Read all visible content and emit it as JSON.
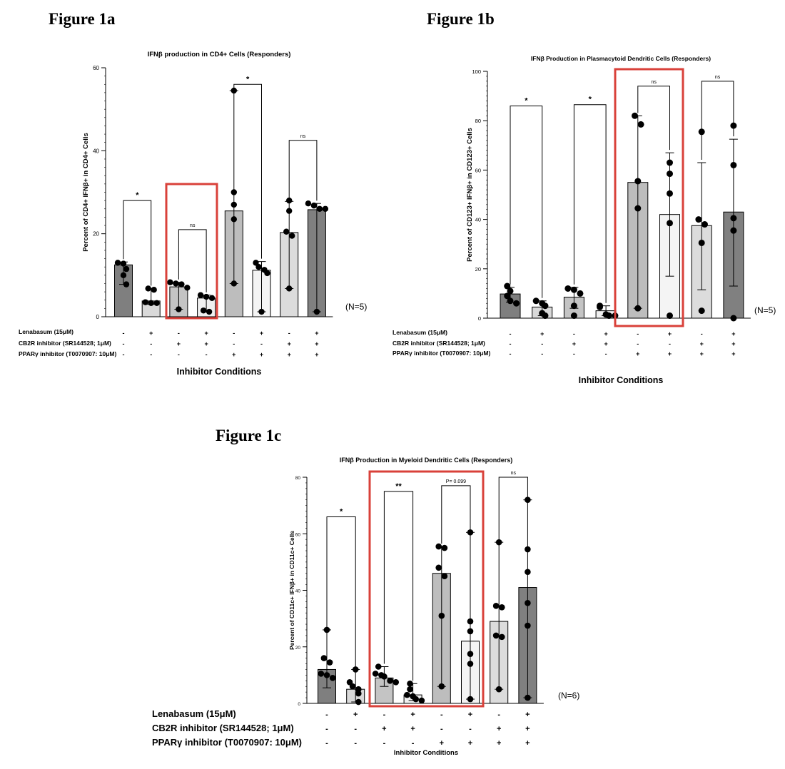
{
  "figures": [
    {
      "title": "Figure 1a"
    },
    {
      "title": "Figure 1b"
    },
    {
      "title": "Figure 1c"
    }
  ],
  "condition_rows": [
    {
      "label": "Lenabasum (15μM)",
      "signs": [
        "-",
        "+",
        "-",
        "+",
        "-",
        "+",
        "-",
        "+"
      ]
    },
    {
      "label": "CB2R inhibitor (SR144528; 1μM)",
      "signs": [
        "-",
        "-",
        "+",
        "+",
        "-",
        "-",
        "+",
        "+"
      ]
    },
    {
      "label": "PPARγ inhibitor (T0070907: 10μM)",
      "signs": [
        "-",
        "-",
        "-",
        "-",
        "+",
        "+",
        "+",
        "+"
      ]
    }
  ],
  "colors": {
    "bars": [
      "#7f7f7f",
      "#d9d9d9",
      "#c4c4c4",
      "#f0f0f0",
      "#bdbdbd",
      "#f4f4f4",
      "#dcdcdc",
      "#808080"
    ],
    "highlight": "#d9413a"
  },
  "chart_data": [
    {
      "type": "bar",
      "title": "IFNβ production in CD4+ Cells (Responders)",
      "ylabel": "Percent of CD4+ IFNβ+ in CD4+ Cells",
      "xlabel": "Inhibitor Conditions",
      "ylim": [
        0,
        60
      ],
      "yticks": [
        0,
        20,
        40,
        60
      ],
      "n_label": "(N=5)",
      "categories": [
        "1",
        "2",
        "3",
        "4",
        "5",
        "6",
        "7",
        "8"
      ],
      "values": [
        12.5,
        3.8,
        7.2,
        4.5,
        25.5,
        11.2,
        20.3,
        25.8
      ],
      "error_lo": [
        7.8,
        3.0,
        1.8,
        1.2,
        8.0,
        1.2,
        6.8,
        1.2
      ],
      "error_hi": [
        13.2,
        6.8,
        8.3,
        5.2,
        54.5,
        13.3,
        27.8,
        27.3
      ],
      "points": [
        [
          13.0,
          12.8,
          11.5,
          10.0,
          7.8
        ],
        [
          6.8,
          6.5,
          3.5,
          3.3,
          3.3
        ],
        [
          8.3,
          8.0,
          7.8,
          7.0,
          1.8
        ],
        [
          5.2,
          4.8,
          4.5,
          1.5,
          1.2
        ],
        [
          54.5,
          30.0,
          27.0,
          23.5,
          8.0
        ],
        [
          13.0,
          12.0,
          11.3,
          10.5,
          1.2
        ],
        [
          28.0,
          25.5,
          20.5,
          19.5,
          6.8
        ],
        [
          27.3,
          26.8,
          26.0,
          26.0,
          1.2
        ]
      ],
      "comparisons": [
        {
          "pair": [
            0,
            1
          ],
          "label": "*",
          "y": 28
        },
        {
          "pair": [
            2,
            3
          ],
          "label": "ns",
          "y": 21
        },
        {
          "pair": [
            4,
            5
          ],
          "label": "*",
          "y": 56
        },
        {
          "pair": [
            6,
            7
          ],
          "label": "ns",
          "y": 42.5
        }
      ],
      "highlight": [
        2,
        3
      ]
    },
    {
      "type": "bar",
      "title": "IFNβ Production in Plasmacytoid Dendritic Cells (Responders)",
      "ylabel": "Percent of CD123+ IFNβ+ in CD123+ Cells",
      "xlabel": "Inhibitor Conditions",
      "ylim": [
        0,
        100
      ],
      "yticks": [
        0,
        20,
        40,
        60,
        80,
        100
      ],
      "n_label": "(N=5)",
      "categories": [
        "1",
        "2",
        "3",
        "4",
        "5",
        "6",
        "7",
        "8"
      ],
      "values": [
        9.8,
        4.5,
        8.5,
        3.0,
        55.0,
        42.0,
        37.5,
        43.0
      ],
      "error_lo": [
        6.5,
        1.0,
        4.0,
        1.0,
        4.0,
        17.0,
        11.5,
        13.0
      ],
      "error_hi": [
        12.5,
        7.0,
        12.5,
        5.0,
        82.0,
        67.0,
        63.0,
        72.5
      ],
      "points": [
        [
          13.0,
          11.0,
          9.0,
          7.0,
          6.0
        ],
        [
          7.0,
          6.0,
          5.0,
          2.0,
          1.0
        ],
        [
          12.0,
          11.5,
          10.0,
          5.0,
          1.0
        ],
        [
          5.0,
          4.5,
          1.5,
          1.0,
          1.0
        ],
        [
          82.0,
          78.5,
          55.5,
          44.5,
          4.0
        ],
        [
          63.0,
          58.5,
          50.5,
          38.5,
          1.0
        ],
        [
          75.5,
          40.0,
          38.0,
          30.5,
          3.0
        ],
        [
          78.0,
          62.0,
          40.5,
          35.5,
          0.0
        ]
      ],
      "comparisons": [
        {
          "pair": [
            0,
            1
          ],
          "label": "*",
          "y": 86
        },
        {
          "pair": [
            2,
            3
          ],
          "label": "*",
          "y": 86.5
        },
        {
          "pair": [
            4,
            5
          ],
          "label": "ns",
          "y": 94
        },
        {
          "pair": [
            6,
            7
          ],
          "label": "ns",
          "y": 96
        }
      ],
      "highlight": [
        4,
        5
      ]
    },
    {
      "type": "bar",
      "title": "IFNβ Production in Myeloid Dendritic Cells (Responders)",
      "ylabel": "Percent of CD11c+ IFNβ+ in CD11c+ Cells",
      "xlabel": "Inhibitor Conditions",
      "ylim": [
        0,
        80
      ],
      "yticks": [
        0,
        20,
        40,
        60,
        80
      ],
      "n_label": "(N=6)",
      "categories": [
        "1",
        "2",
        "3",
        "4",
        "5",
        "6",
        "7",
        "8"
      ],
      "values": [
        12.0,
        5.0,
        9.0,
        3.0,
        46.0,
        22.0,
        29.0,
        41.0
      ],
      "error_lo": [
        5.5,
        0.5,
        6.0,
        1.0,
        6.0,
        1.5,
        5.0,
        2.0
      ],
      "error_hi": [
        26.0,
        12.0,
        13.0,
        7.0,
        55.5,
        60.5,
        57.0,
        72.0
      ],
      "points": [
        [
          26.0,
          16.0,
          14.5,
          10.5,
          10.0,
          9.0
        ],
        [
          12.0,
          7.5,
          6.0,
          5.0,
          3.5,
          0.5
        ],
        [
          13.0,
          10.5,
          10.0,
          9.5,
          8.0,
          7.5
        ],
        [
          7.0,
          5.0,
          3.0,
          2.5,
          1.5,
          1.0
        ],
        [
          55.5,
          55.0,
          48.0,
          45.0,
          31.0,
          6.0
        ],
        [
          60.5,
          29.0,
          25.5,
          17.5,
          14.0,
          1.5
        ],
        [
          57.0,
          34.5,
          34.0,
          24.0,
          23.5,
          5.0
        ],
        [
          72.0,
          54.5,
          46.5,
          35.5,
          27.5,
          2.0
        ]
      ],
      "comparisons": [
        {
          "pair": [
            0,
            1
          ],
          "label": "*",
          "y": 66
        },
        {
          "pair": [
            2,
            3
          ],
          "label": "**",
          "y": 75
        },
        {
          "pair": [
            4,
            5
          ],
          "label": "P= 0.099",
          "y": 77
        },
        {
          "pair": [
            6,
            7
          ],
          "label": "ns",
          "y": 80
        }
      ],
      "highlight": [
        2,
        5
      ]
    }
  ]
}
